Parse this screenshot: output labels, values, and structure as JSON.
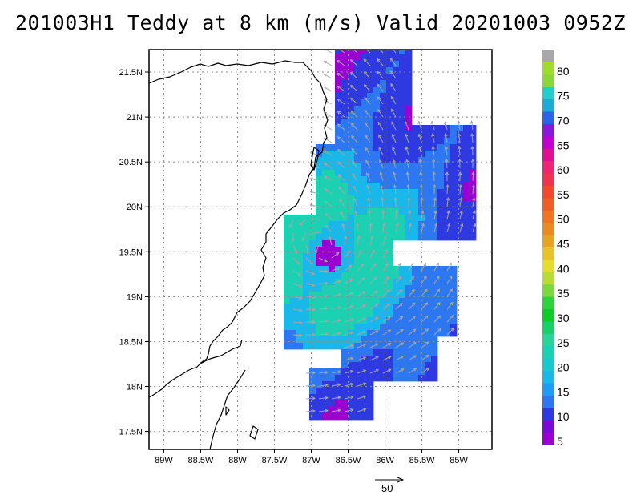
{
  "title": "201003H1 Teddy at 8 km (m/s) Valid 20201003 0952Z",
  "map": {
    "lon_range": [
      -89.2,
      -84.55
    ],
    "lat_range": [
      17.3,
      21.75
    ],
    "lon_ticks": [
      {
        "value": -89.0,
        "label": "89W"
      },
      {
        "value": -88.5,
        "label": "88.5W"
      },
      {
        "value": -88.0,
        "label": "88W"
      },
      {
        "value": -87.5,
        "label": "87.5W"
      },
      {
        "value": -87.0,
        "label": "87W"
      },
      {
        "value": -86.5,
        "label": "86.5W"
      },
      {
        "value": -86.0,
        "label": "86W"
      },
      {
        "value": -85.5,
        "label": "85.5W"
      },
      {
        "value": -85.0,
        "label": "85W"
      }
    ],
    "lat_ticks": [
      {
        "value": 17.5,
        "label": "17.5N"
      },
      {
        "value": 18.0,
        "label": "18N"
      },
      {
        "value": 18.5,
        "label": "18.5N"
      },
      {
        "value": 19.0,
        "label": "19N"
      },
      {
        "value": 19.5,
        "label": "19.5N"
      },
      {
        "value": 20.0,
        "label": "20N"
      },
      {
        "value": 20.5,
        "label": "20.5N"
      },
      {
        "value": 21.0,
        "label": "21N"
      },
      {
        "value": 21.5,
        "label": "21.5N"
      }
    ],
    "grid": "dotted",
    "storm_center": {
      "lon": -86.8,
      "lat": 19.5
    }
  },
  "colorbar": {
    "levels": [
      {
        "label": "5",
        "color": "#9b00d2"
      },
      {
        "label": "",
        "color": "#7a0bd6"
      },
      {
        "label": "10",
        "color": "#2e3ae0"
      },
      {
        "label": "",
        "color": "#2d78f0"
      },
      {
        "label": "15",
        "color": "#1e9cf3"
      },
      {
        "label": "",
        "color": "#19b8e8"
      },
      {
        "label": "20",
        "color": "#19c8cd"
      },
      {
        "label": "",
        "color": "#1dd0b2"
      },
      {
        "label": "25",
        "color": "#2ad498"
      },
      {
        "label": "",
        "color": "#18d06a"
      },
      {
        "label": "30",
        "color": "#0ccc25"
      },
      {
        "label": "",
        "color": "#2bd43a"
      },
      {
        "label": "35",
        "color": "#7cd83c"
      },
      {
        "label": "",
        "color": "#b9dc34"
      },
      {
        "label": "40",
        "color": "#e4dc30"
      },
      {
        "label": "",
        "color": "#e8c22a"
      },
      {
        "label": "45",
        "color": "#e6a326"
      },
      {
        "label": "",
        "color": "#ea8a22"
      },
      {
        "label": "50",
        "color": "#ef7520"
      },
      {
        "label": "",
        "color": "#f05e28"
      },
      {
        "label": "55",
        "color": "#f2492e"
      },
      {
        "label": "",
        "color": "#ef3452"
      },
      {
        "label": "60",
        "color": "#ec2575"
      },
      {
        "label": "",
        "color": "#de1092"
      },
      {
        "label": "65",
        "color": "#c000d0"
      },
      {
        "label": "",
        "color": "#8a18d8"
      },
      {
        "label": "70",
        "color": "#2a64e8"
      },
      {
        "label": "",
        "color": "#1caad6"
      },
      {
        "label": "75",
        "color": "#24cccc"
      },
      {
        "label": "",
        "color": "#8cd63a"
      },
      {
        "label": "80",
        "color": "#a0dc2c"
      },
      {
        "label": "",
        "color": "#a8a8a8"
      }
    ]
  },
  "reference_vector": {
    "label": "50"
  },
  "colors": {
    "frame": "#000000",
    "grid": "#8c8c8c",
    "coast": "#000000",
    "arrow": "#a6a6a6"
  }
}
